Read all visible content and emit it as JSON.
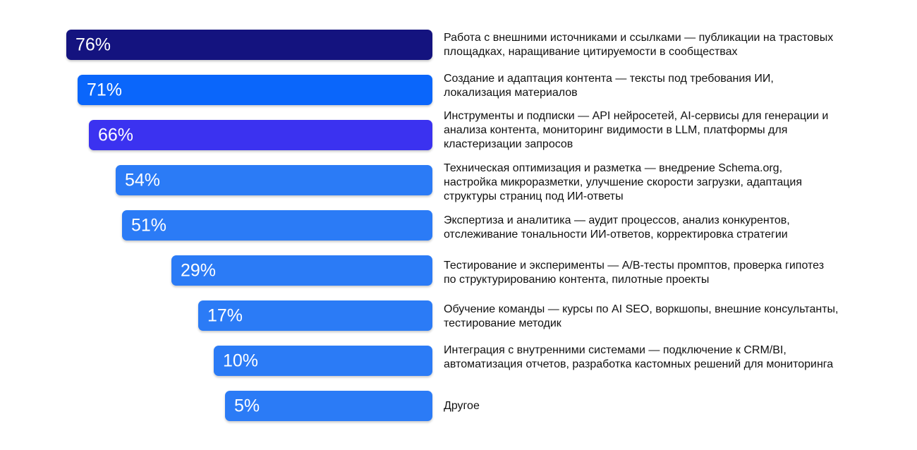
{
  "chart_data": {
    "type": "bar",
    "orientation": "horizontal",
    "xlim": [
      0,
      100
    ],
    "grid": false,
    "categories": [
      "Работа с внешними источниками и ссылками — публикации на трастовых площадках, наращивание цитируемости в сообществах",
      "Создание и адаптация контента — тексты под требования ИИ, локализация материалов",
      "Инструменты и подписки — API нейросетей, AI-сервисы для генерации и анализа контента, мониторинг видимости в LLM, платформы для кластеризации запросов",
      "Техническая оптимизация и разметка — внедрение Schema.org, настройка микроразметки, улучшение скорости загрузки, адаптация структуры страниц под ИИ-ответы",
      "Экспертиза и аналитика — аудит процессов, анализ конкурентов, отслеживание тональности ИИ-ответов, корректировка стратегии",
      "Тестирование и эксперименты — A/B-тесты промптов, проверка гипотез по структурированию контента, пилотные проекты",
      "Обучение команды — курсы по AI SEO, воркшопы, внешние консультанты, тестирование методик",
      "Интеграция с внутренними системами — подключение к CRM/BI, автоматизация отчетов, разработка кастомных решений для мониторинга",
      "Другое"
    ],
    "values": [
      76,
      71,
      66,
      54,
      51,
      29,
      17,
      10,
      5
    ],
    "value_labels": [
      "76%",
      "71%",
      "66%",
      "54%",
      "51%",
      "29%",
      "17%",
      "10%",
      "5%"
    ],
    "bar_colors": [
      "#14137f",
      "#0a66fb",
      "#3b32f0",
      "#2b7bf6",
      "#2b7bf6",
      "#2b7bf6",
      "#2b7bf6",
      "#2b7bf6",
      "#2b7bf6"
    ]
  }
}
